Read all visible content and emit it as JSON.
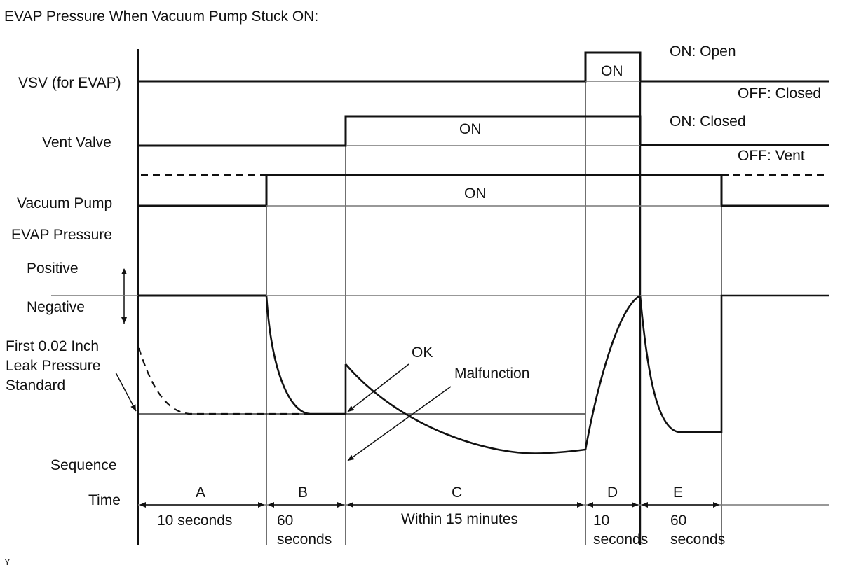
{
  "title": "EVAP Pressure When Vacuum Pump Stuck ON:",
  "rows": {
    "vsv": "VSV (for EVAP)",
    "vent_valve": "Vent Valve",
    "vacuum_pump": "Vacuum Pump",
    "evap_pressure": "EVAP Pressure",
    "positive": "Positive",
    "negative": "Negative",
    "first_leak": [
      "First 0.02 Inch",
      "Leak Pressure",
      "Standard"
    ],
    "sequence": "Sequence",
    "time": "Time"
  },
  "states": {
    "vsv_on": "ON",
    "vsv_on_note": "ON: Open",
    "vsv_off_note": "OFF: Closed",
    "vent_on": "ON",
    "vent_on_note": "ON: Closed",
    "vent_off_note": "OFF: Vent",
    "pump_on": "ON"
  },
  "annotations": {
    "ok": "OK",
    "malfunction": "Malfunction"
  },
  "sequence": [
    {
      "letter": "A",
      "time": [
        "10 seconds"
      ]
    },
    {
      "letter": "B",
      "time": [
        "60",
        "seconds"
      ]
    },
    {
      "letter": "C",
      "time": [
        "Within 15 minutes"
      ]
    },
    {
      "letter": "D",
      "time": [
        "10",
        "seconds"
      ]
    },
    {
      "letter": "E",
      "time": [
        "60",
        "seconds"
      ]
    }
  ],
  "footnote": "Y"
}
